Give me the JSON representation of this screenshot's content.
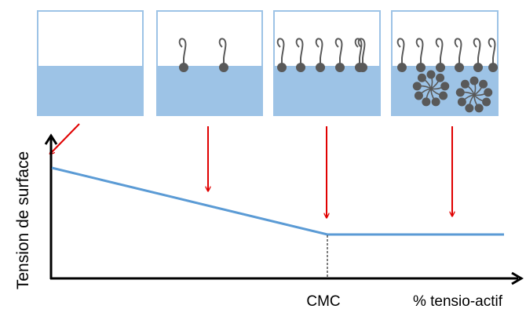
{
  "diagram": {
    "y_axis_label": "Tension de surface",
    "cmc_label": "CMC",
    "x_axis_label": "% tensio-actif",
    "stages": [
      {
        "surface_molecules": 0,
        "micelles": 0
      },
      {
        "surface_molecules": 2,
        "micelles": 0
      },
      {
        "surface_molecules": 6,
        "micelles": 0
      },
      {
        "surface_molecules": 6,
        "micelles": 2
      }
    ],
    "colors": {
      "water": "#9dc3e6",
      "container_border": "#9dc3e6",
      "molecule": "#595959",
      "curve": "#5b9bd5",
      "arrow": "#e00000",
      "axis": "#000000"
    }
  }
}
